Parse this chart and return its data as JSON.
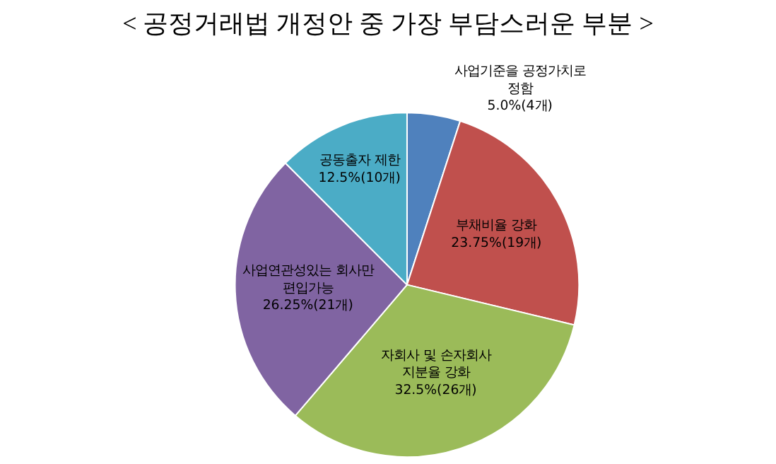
{
  "chart_data": {
    "type": "pie",
    "title": "< 공정거래법 개정안 중 가장 부담스러운 부분 >",
    "categories": [
      "사업기준을 공정가치로\n정함",
      "부채비율 강화",
      "자회사 및 손자회사\n지분율 강화",
      "사업연관성있는 회사만\n편입가능",
      "공동출자 제한"
    ],
    "values": [
      5.0,
      23.75,
      32.5,
      26.25,
      12.5
    ],
    "value_labels": [
      "5.0%(4개)",
      "23.75%(19개)",
      "32.5%(26개)",
      "26.25%(21개)",
      "12.5%(10개)"
    ],
    "colors": [
      "#4f81bd",
      "#c0504d",
      "#9bbb59",
      "#8064a2",
      "#4bacc6"
    ],
    "legend": false
  }
}
